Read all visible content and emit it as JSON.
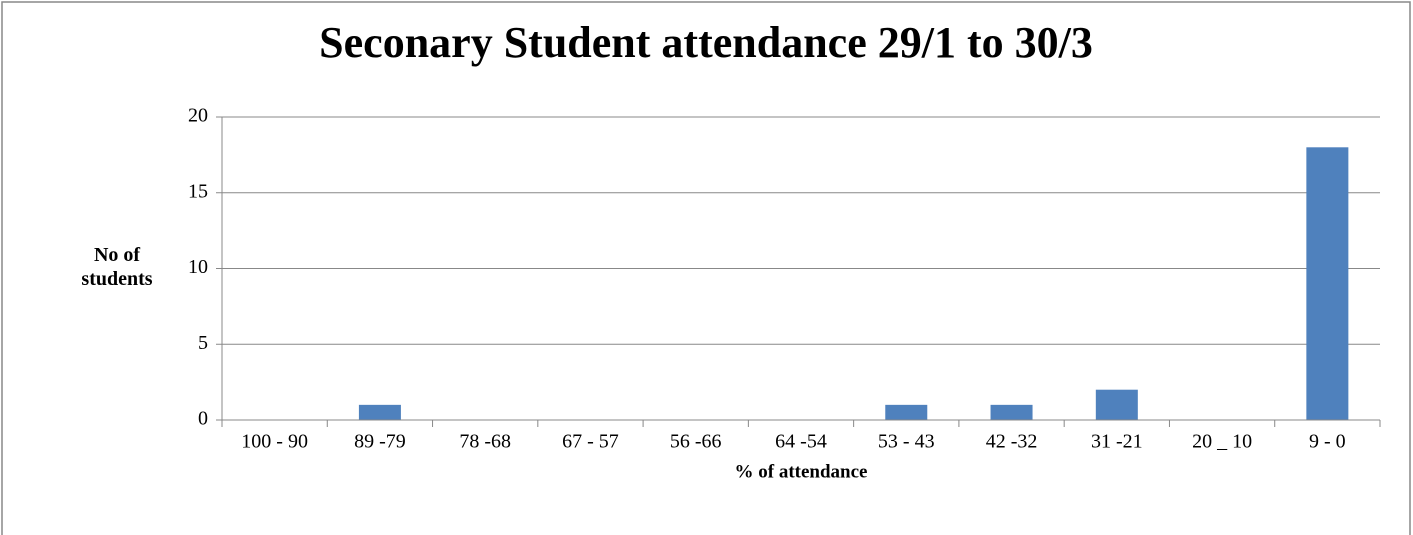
{
  "chart_data": {
    "type": "bar",
    "title": "Seconary Student attendance 29/1 to 30/3",
    "x_label": "% of attendance",
    "y_label": "No of students",
    "categories": [
      "100 - 90",
      "89 -79",
      "78 -68",
      "67 - 57",
      "56 -66",
      "64 -54",
      "53 - 43",
      "42 -32",
      "31 -21",
      "20 _ 10",
      "9 - 0"
    ],
    "values": [
      0,
      1,
      0,
      0,
      0,
      0,
      1,
      1,
      2,
      0,
      18
    ],
    "color": "#4f81bd",
    "ylim": [
      0,
      20
    ],
    "yticks": [
      0,
      5,
      10,
      15,
      20
    ],
    "grid": true
  }
}
